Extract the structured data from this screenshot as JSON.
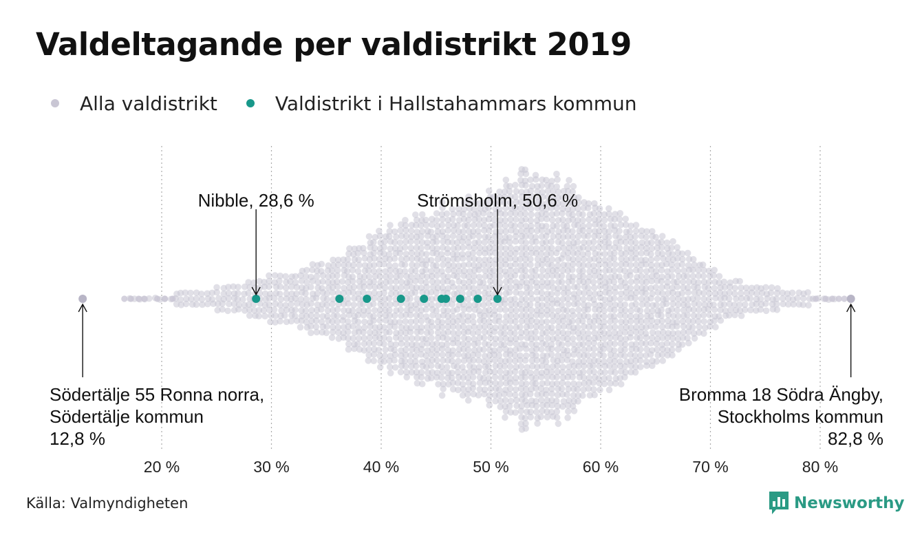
{
  "title": "Valdeltagande per valdistrikt 2019",
  "source": "Källa: Valmyndigheten",
  "brand": {
    "name": "Newsworthy",
    "icon": "newsworthy-logo-icon",
    "color": "#2a9a84"
  },
  "colors": {
    "all": "#c9c6d4",
    "highlight": "#18988a",
    "grid": "#aaaaaa",
    "text": "#111111"
  },
  "chart_data": {
    "type": "scatter",
    "subtype": "beeswarm",
    "xlabel": "",
    "ylabel": "",
    "xlim": [
      12,
      84
    ],
    "xticks": [
      20,
      30,
      40,
      50,
      60,
      70,
      80
    ],
    "xtick_labels": [
      "20 %",
      "30 %",
      "40 %",
      "50 %",
      "60 %",
      "70 %",
      "80 %"
    ],
    "grid": "vertical-dotted",
    "legend": "top-left",
    "series": [
      {
        "name": "Alla valdistrikt",
        "color": "#c9c6d4",
        "distribution": "dense swarm of several thousand districts, peak around 54 %, range 12,8 % to 82,8 %",
        "outliers": [
          12.8,
          82.8
        ],
        "values": [
          12.8,
          16.6,
          17.2,
          17.9,
          18.4,
          19.6,
          20.3,
          21.0,
          79.6,
          80.5,
          81.1,
          81.7,
          82.2,
          82.8
        ]
      },
      {
        "name": "Valdistrikt i Hallstahammars kommun",
        "color": "#18988a",
        "values": [
          28.6,
          36.2,
          38.7,
          41.8,
          43.9,
          45.5,
          45.9,
          47.2,
          48.8,
          50.6
        ]
      }
    ],
    "annotations": [
      {
        "label": "Nibble, 28,6 %",
        "x": 28.6,
        "placement": "above"
      },
      {
        "label": "Strömsholm, 50,6 %",
        "x": 50.6,
        "placement": "above"
      },
      {
        "label": [
          "Södertälje 55 Ronna norra,",
          "Södertälje kommun",
          "12,8 %"
        ],
        "x": 12.8,
        "placement": "below-left"
      },
      {
        "label": [
          "Bromma 18 Södra Ängby,",
          "Stockholms kommun",
          "82,8 %"
        ],
        "x": 82.8,
        "placement": "below-right"
      }
    ]
  }
}
